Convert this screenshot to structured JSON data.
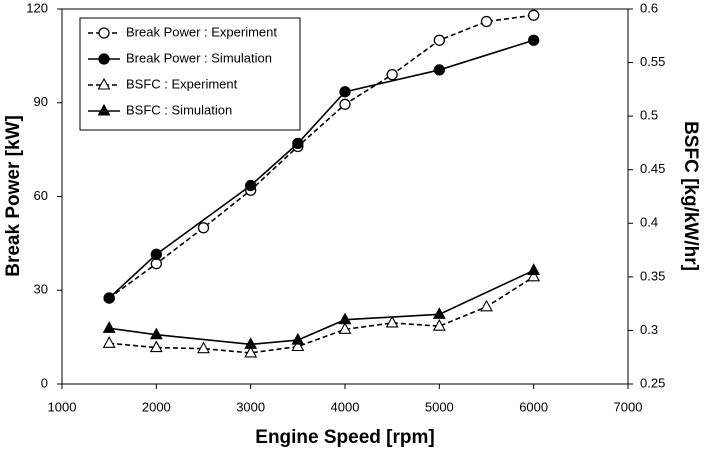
{
  "chart_data": {
    "type": "line",
    "x_label": "Engine Speed [rpm]",
    "y_label": "Break Power [kW]",
    "y2_label": "BSFC [kg/kW/hr]",
    "xlim": [
      1000,
      7000
    ],
    "xticks": [
      1000,
      2000,
      3000,
      4000,
      5000,
      6000,
      7000
    ],
    "ylim": [
      0,
      120
    ],
    "yticks": [
      0,
      30,
      60,
      90,
      120
    ],
    "y2lim": [
      0.25,
      0.6
    ],
    "y2ticks": [
      0.25,
      0.3,
      0.35,
      0.4,
      0.45,
      0.5,
      0.55,
      0.6
    ],
    "grid": false,
    "legend": "upper left",
    "series": [
      {
        "name": "Break Power : Experiment",
        "color": "#000000",
        "dashed": true,
        "marker": "circle",
        "filled": false,
        "x": [
          1500,
          2000,
          2500,
          3000,
          3500,
          4000,
          4500,
          5000,
          5500,
          6000
        ],
        "values": [
          27.5,
          38.5,
          50,
          62,
          76,
          89.5,
          99,
          110,
          116,
          118
        ]
      },
      {
        "name": "Break Power : Simulation",
        "color": "#000000",
        "dashed": false,
        "marker": "circle",
        "filled": true,
        "x": [
          1500,
          2000,
          3000,
          3500,
          4000,
          5000,
          6000
        ],
        "values": [
          27.5,
          41.5,
          63.5,
          77,
          93.5,
          100.5,
          110
        ]
      },
      {
        "name": "BSFC : Experiment",
        "color": "#000000",
        "dashed": true,
        "marker": "triangle",
        "filled": false,
        "axis": "y2",
        "x": [
          1500,
          2000,
          2500,
          3000,
          3500,
          4000,
          4500,
          5000,
          5500,
          6000
        ],
        "values": [
          0.288,
          0.284,
          0.283,
          0.279,
          0.285,
          0.301,
          0.307,
          0.304,
          0.322,
          0.35
        ]
      },
      {
        "name": "BSFC : Simulation",
        "color": "#000000",
        "dashed": false,
        "marker": "triangle",
        "filled": true,
        "axis": "y2",
        "x": [
          1500,
          2000,
          3000,
          3500,
          4000,
          5000,
          6000
        ],
        "values": [
          0.302,
          0.296,
          0.287,
          0.291,
          0.31,
          0.315,
          0.356
        ]
      }
    ]
  }
}
